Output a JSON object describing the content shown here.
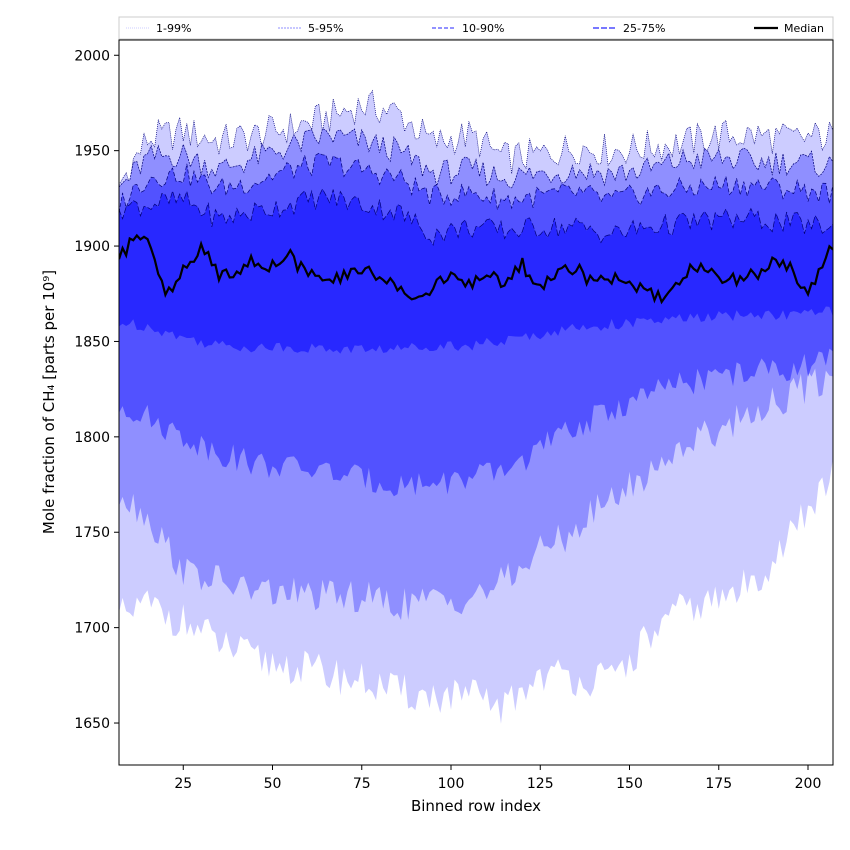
{
  "chart_data": {
    "type": "area",
    "xlabel": "Binned row index",
    "ylabel": "Mole fraction of CH₄ [parts per 10⁹]",
    "xlim": [
      7,
      207
    ],
    "ylim": [
      1628,
      2008
    ],
    "xticks": [
      25,
      50,
      75,
      100,
      125,
      150,
      175,
      200
    ],
    "yticks": [
      1650,
      1700,
      1750,
      1800,
      1850,
      1900,
      1950,
      2000
    ],
    "legend_position": "top",
    "legend": [
      "1-99%",
      "5-95%",
      "10-90%",
      "25-75%",
      "Median"
    ],
    "colors": {
      "band_1_99": "#ccccff",
      "band_5_95": "#8f8fff",
      "band_10_90": "#5252ff",
      "band_25_75": "#2828ff",
      "median": "#000000",
      "outline": "#00007a"
    },
    "series": [
      {
        "name": "1-99%",
        "key": "p1_99",
        "x": [
          7,
          15,
          25,
          35,
          45,
          55,
          65,
          75,
          85,
          95,
          105,
          115,
          125,
          135,
          145,
          155,
          165,
          175,
          185,
          195,
          207
        ],
        "lower": [
          1705,
          1712,
          1703,
          1692,
          1683,
          1680,
          1676,
          1672,
          1666,
          1664,
          1664,
          1658,
          1676,
          1674,
          1672,
          1694,
          1710,
          1714,
          1724,
          1748,
          1780
        ],
        "upper": [
          1932,
          1956,
          1960,
          1955,
          1958,
          1962,
          1967,
          1974,
          1970,
          1954,
          1958,
          1946,
          1948,
          1952,
          1950,
          1952,
          1954,
          1958,
          1958,
          1956,
          1958
        ]
      },
      {
        "name": "5-95%",
        "key": "p5_95",
        "x": [
          7,
          15,
          25,
          35,
          45,
          55,
          65,
          75,
          85,
          95,
          105,
          115,
          125,
          135,
          145,
          155,
          165,
          175,
          185,
          195,
          207
        ],
        "lower": [
          1772,
          1758,
          1730,
          1724,
          1719,
          1718,
          1716,
          1716,
          1712,
          1714,
          1716,
          1724,
          1740,
          1752,
          1768,
          1780,
          1796,
          1804,
          1814,
          1822,
          1832
        ],
        "upper": [
          1930,
          1946,
          1948,
          1940,
          1946,
          1952,
          1958,
          1955,
          1950,
          1938,
          1940,
          1936,
          1938,
          1940,
          1938,
          1940,
          1945,
          1946,
          1944,
          1944,
          1942
        ]
      },
      {
        "name": "10-90%",
        "key": "p10_90",
        "x": [
          7,
          15,
          25,
          35,
          45,
          55,
          65,
          75,
          85,
          95,
          105,
          115,
          125,
          135,
          145,
          155,
          165,
          175,
          185,
          195,
          207
        ],
        "lower": [
          1818,
          1810,
          1800,
          1792,
          1786,
          1784,
          1782,
          1778,
          1775,
          1776,
          1778,
          1782,
          1794,
          1805,
          1814,
          1822,
          1828,
          1832,
          1834,
          1836,
          1840
        ],
        "upper": [
          1922,
          1936,
          1938,
          1930,
          1934,
          1940,
          1944,
          1940,
          1936,
          1926,
          1928,
          1924,
          1926,
          1928,
          1924,
          1928,
          1930,
          1932,
          1932,
          1930,
          1928
        ]
      },
      {
        "name": "25-75%",
        "key": "p25_75",
        "x": [
          7,
          15,
          25,
          35,
          45,
          55,
          65,
          75,
          85,
          95,
          105,
          115,
          125,
          135,
          145,
          155,
          165,
          175,
          185,
          195,
          207
        ],
        "lower": [
          1860,
          1858,
          1852,
          1848,
          1847,
          1847,
          1846,
          1846,
          1846,
          1848,
          1848,
          1850,
          1854,
          1857,
          1859,
          1860,
          1862,
          1863,
          1864,
          1864,
          1866
        ],
        "upper": [
          1920,
          1922,
          1924,
          1914,
          1918,
          1922,
          1926,
          1922,
          1918,
          1906,
          1910,
          1908,
          1910,
          1910,
          1906,
          1910,
          1912,
          1914,
          1914,
          1912,
          1910
        ]
      },
      {
        "name": "Median",
        "key": "median",
        "x": [
          7,
          10,
          15,
          18,
          20,
          25,
          30,
          35,
          40,
          45,
          50,
          55,
          60,
          65,
          70,
          75,
          80,
          85,
          90,
          95,
          100,
          105,
          110,
          115,
          120,
          125,
          130,
          135,
          140,
          145,
          150,
          155,
          160,
          165,
          170,
          175,
          180,
          185,
          190,
          195,
          200,
          205,
          207
        ],
        "y": [
          1896,
          1900,
          1907,
          1888,
          1876,
          1886,
          1898,
          1886,
          1888,
          1892,
          1890,
          1894,
          1886,
          1880,
          1884,
          1888,
          1884,
          1880,
          1872,
          1878,
          1884,
          1880,
          1884,
          1882,
          1890,
          1878,
          1886,
          1890,
          1880,
          1884,
          1878,
          1876,
          1870,
          1886,
          1887,
          1884,
          1882,
          1886,
          1890,
          1890,
          1876,
          1896,
          1900
        ]
      }
    ]
  }
}
